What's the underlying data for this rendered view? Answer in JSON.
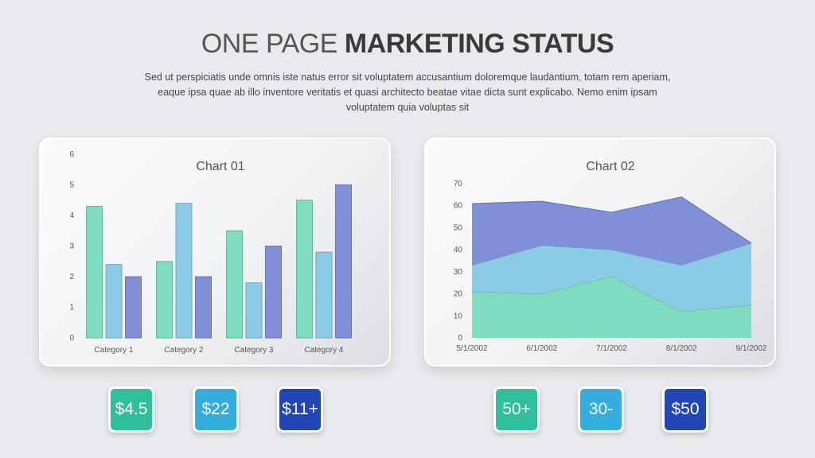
{
  "title_light": "ONE PAGE",
  "title_bold": "MARKETING STATUS",
  "subtitle": "Sed ut perspiciatis unde omnis iste natus error sit voluptatem accusantium doloremque laudantium, totam rem aperiam, eaque ipsa quae ab illo inventore veritatis et quasi architecto beatae vitae dicta sunt explicabo. Nemo enim ipsam voluptatem quia voluptas sit",
  "colors": {
    "teal": "#7fdcc0",
    "sky": "#8ccbe6",
    "indigo": "#7f8fd8"
  },
  "chart_data": [
    {
      "type": "bar",
      "title": "Chart 01",
      "categories": [
        "Category 1",
        "Category 2",
        "Category 3",
        "Category 4"
      ],
      "series": [
        {
          "values": [
            4.3,
            2.5,
            3.5,
            4.5
          ]
        },
        {
          "values": [
            2.4,
            4.4,
            1.8,
            2.8
          ]
        },
        {
          "values": [
            2.0,
            2.0,
            3.0,
            5.0
          ]
        }
      ],
      "ylim": [
        0,
        6
      ],
      "yticks": [
        0,
        1,
        2,
        3,
        4,
        5,
        6
      ],
      "grid": false
    },
    {
      "type": "area",
      "stacked": true,
      "title": "Chart 02",
      "x": [
        "5/1/2002",
        "6/1/2002",
        "7/1/2002",
        "8/1/2002",
        "9/1/2002"
      ],
      "series": [
        {
          "values": [
            21,
            20,
            28,
            12,
            15
          ]
        },
        {
          "values": [
            12,
            22,
            12,
            21,
            28
          ]
        },
        {
          "values": [
            28,
            20,
            17,
            31,
            0
          ]
        }
      ],
      "ylim": [
        0,
        70
      ],
      "yticks": [
        0,
        10,
        20,
        30,
        40,
        50,
        60,
        70
      ],
      "grid": false
    }
  ],
  "badges_left": [
    {
      "label": "$4.5",
      "color": "#2fbf9b"
    },
    {
      "label": "$22",
      "color": "#35aede"
    },
    {
      "label": "$11+",
      "color": "#2346b6"
    }
  ],
  "badges_right": [
    {
      "label": "50+",
      "color": "#2fbf9b"
    },
    {
      "label": "30-",
      "color": "#35aede"
    },
    {
      "label": "$50",
      "color": "#2346b6"
    }
  ]
}
